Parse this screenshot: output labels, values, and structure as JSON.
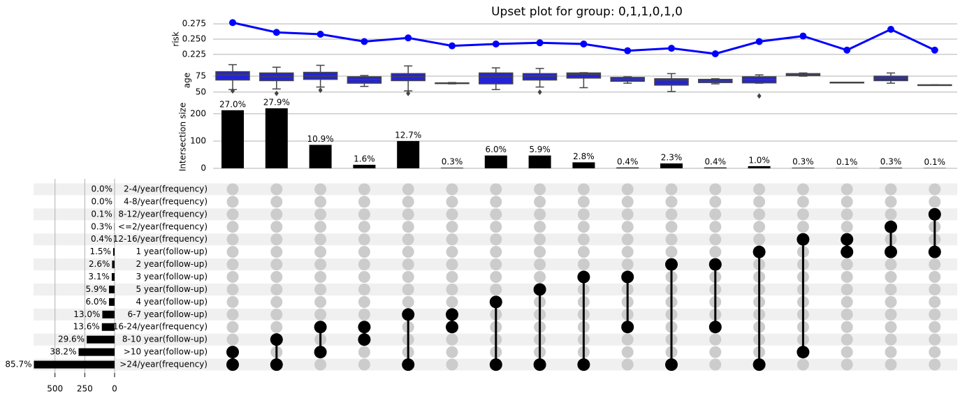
{
  "chart_data": {
    "type": "upset",
    "title": "Upset plot for group: 0,1,1,0,1,0",
    "sets": {
      "names": [
        "2-4/year(frequency)",
        "4-8/year(frequency)",
        "8-12/year(frequency)",
        "<=2/year(frequency)",
        "12-16/year(frequency)",
        "1 year(follow-up)",
        "2 year(follow-up)",
        "3 year(follow-up)",
        "5 year(follow-up)",
        "4 year(follow-up)",
        "6-7 year(follow-up)",
        "16-24/year(frequency)",
        "8-10 year(follow-up)",
        ">10 year(follow-up)",
        ">24/year(frequency)"
      ],
      "sizes": [
        0,
        0,
        1,
        2,
        3,
        12,
        21,
        24,
        47,
        47,
        103,
        107,
        234,
        302,
        677
      ],
      "labels": [
        "0.0%",
        "0.0%",
        "0.1%",
        "0.3%",
        "0.4%",
        "1.5%",
        "2.6%",
        "3.1%",
        "5.9%",
        "6.0%",
        "13.0%",
        "13.6%",
        "29.6%",
        "38.2%",
        "85.7%"
      ],
      "color": "#000000",
      "xlim": [
        0,
        680
      ],
      "xticks": [
        0,
        250,
        500
      ]
    },
    "intersections": {
      "members": [
        [
          13,
          14
        ],
        [
          12,
          14
        ],
        [
          11,
          13
        ],
        [
          11,
          12
        ],
        [
          10,
          14
        ],
        [
          10,
          11
        ],
        [
          9,
          14
        ],
        [
          8,
          14
        ],
        [
          7,
          14
        ],
        [
          7,
          11
        ],
        [
          6,
          14
        ],
        [
          6,
          11
        ],
        [
          5,
          14
        ],
        [
          4,
          13
        ],
        [
          4,
          5
        ],
        [
          3,
          5
        ],
        [
          2,
          5
        ]
      ],
      "sizes": [
        213,
        220,
        86,
        13,
        100,
        2,
        47,
        47,
        22,
        3,
        18,
        3,
        8,
        2,
        1,
        2,
        1
      ],
      "labels": [
        "27.0%",
        "27.9%",
        "10.9%",
        "1.6%",
        "12.7%",
        "0.3%",
        "6.0%",
        "5.9%",
        "2.8%",
        "0.4%",
        "2.3%",
        "0.4%",
        "1.0%",
        "0.3%",
        "0.1%",
        "0.3%",
        "0.1%"
      ],
      "color": "#000000",
      "ylabel": "Intersection size",
      "ylim": [
        0,
        233
      ],
      "yticks": [
        0,
        100,
        200
      ]
    },
    "risk": {
      "ylabel": "risk",
      "values": [
        0.277,
        0.261,
        0.258,
        0.246,
        0.252,
        0.239,
        0.242,
        0.244,
        0.242,
        0.231,
        0.235,
        0.226,
        0.246,
        0.255,
        0.232,
        0.266,
        0.232
      ],
      "color": "#0000ff",
      "ylim": [
        0.218,
        0.282
      ],
      "yticks": [
        {
          "value": 0.225,
          "label": "0.225"
        },
        {
          "value": 0.25,
          "label": "0.250"
        },
        {
          "value": 0.275,
          "label": "0.275"
        }
      ]
    },
    "age": {
      "ylabel": "age",
      "color": "#2424d6",
      "boxes": [
        {
          "whislo": 54,
          "q1": 69,
          "med": 77,
          "q3": 82,
          "whishi": 93,
          "fliers": [
            52
          ]
        },
        {
          "whislo": 55,
          "q1": 68,
          "med": 74,
          "q3": 80,
          "whishi": 89,
          "fliers": [
            48
          ]
        },
        {
          "whislo": 58,
          "q1": 70,
          "med": 75,
          "q3": 81,
          "whishi": 92,
          "fliers": [
            53
          ]
        },
        {
          "whislo": 59,
          "q1": 64,
          "med": 70,
          "q3": 74,
          "whishi": 76,
          "fliers": []
        },
        {
          "whislo": 52,
          "q1": 68,
          "med": 74,
          "q3": 79,
          "whishi": 91,
          "fliers": [
            48
          ]
        },
        {
          "whislo": 63,
          "q1": 63.5,
          "med": 64,
          "q3": 64.5,
          "whishi": 65,
          "fliers": []
        },
        {
          "whislo": 54,
          "q1": 63,
          "med": 74,
          "q3": 80,
          "whishi": 88,
          "fliers": []
        },
        {
          "whislo": 58,
          "q1": 69,
          "med": 75,
          "q3": 79,
          "whishi": 87,
          "fliers": [
            50
          ]
        },
        {
          "whislo": 57,
          "q1": 72,
          "med": 78,
          "q3": 80,
          "whishi": 80.5,
          "fliers": []
        },
        {
          "whislo": 64,
          "q1": 67,
          "med": 70,
          "q3": 73,
          "whishi": 74,
          "fliers": []
        },
        {
          "whislo": 51,
          "q1": 61,
          "med": 69,
          "q3": 71,
          "whishi": 79,
          "fliers": []
        },
        {
          "whislo": 63,
          "q1": 65,
          "med": 67,
          "q3": 70,
          "whishi": 71,
          "fliers": []
        },
        {
          "whislo": 64,
          "q1": 64.5,
          "med": 70,
          "q3": 74,
          "whishi": 77,
          "fliers": [
            44
          ]
        },
        {
          "whislo": 75,
          "q1": 76,
          "med": 78,
          "q3": 79,
          "whishi": 80,
          "fliers": []
        },
        {
          "whislo": 65,
          "q1": 65,
          "med": 65,
          "q3": 65.5,
          "whishi": 65.5,
          "fliers": []
        },
        {
          "whislo": 64,
          "q1": 68,
          "med": 72,
          "q3": 75,
          "whishi": 80,
          "fliers": []
        },
        {
          "whislo": 61,
          "q1": 61,
          "med": 61,
          "q3": 61.5,
          "whishi": 61.5,
          "fliers": []
        }
      ],
      "ylim": [
        39,
        98
      ],
      "yticks": [
        50,
        75
      ]
    }
  }
}
